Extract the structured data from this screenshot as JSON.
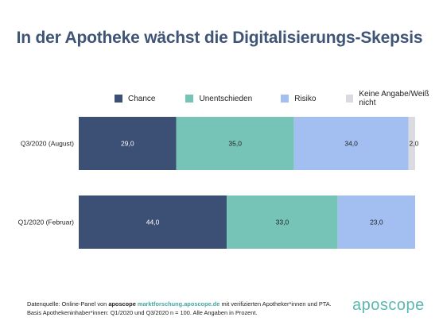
{
  "title": "In der Apotheke wächst die Digitalisierungs-Skepsis",
  "chart_data": {
    "type": "bar",
    "orientation": "horizontal",
    "stacked": true,
    "categories": [
      "Q3/2020 (August)",
      "Q1/2020 (Februar)"
    ],
    "series": [
      {
        "name": "Chance",
        "color": "#3c5075",
        "values": [
          29.0,
          44.0
        ]
      },
      {
        "name": "Unentschieden",
        "color": "#76c4b7",
        "values": [
          35.0,
          33.0
        ]
      },
      {
        "name": "Risiko",
        "color": "#a3bff2",
        "values": [
          34.0,
          23.0
        ]
      },
      {
        "name": "Keine Angabe/Weiß nicht",
        "color": "#d9dbe0",
        "values": [
          2.0,
          0
        ]
      }
    ],
    "data_labels": [
      [
        "29,0",
        "35,0",
        "34,0",
        "2,0"
      ],
      [
        "44,0",
        "33,0",
        "23,0",
        ""
      ]
    ],
    "xlim": [
      0,
      100
    ],
    "legend_position": "top",
    "grid": false
  },
  "footer": {
    "line1_prefix": "Datenquelle: Online-Panel von",
    "line1_brand": "aposcope",
    "line1_link": "marktforschung.aposcope.de",
    "line1_suffix": "mit verifizierten Apotheker*innen und PTA.",
    "line2": "Basis Apothekeninhaber*innen: Q1/2020 und Q3/2020 n = 100. Alle Angaben in Prozent."
  },
  "logo": "aposcope"
}
